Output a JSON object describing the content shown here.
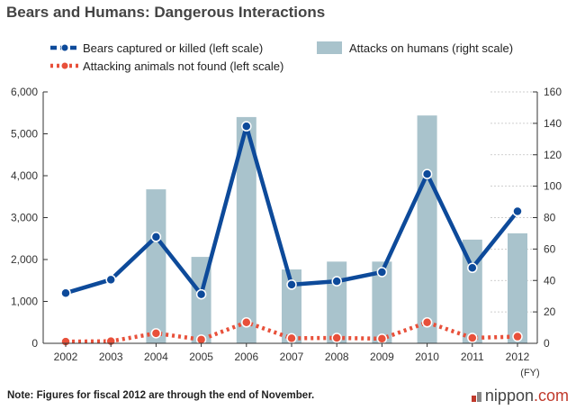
{
  "title": "Bears and Humans: Dangerous Interactions",
  "note": "Note: Figures for fiscal 2012 are through the end of November.",
  "brand": {
    "name": "nippon",
    "suffix": ".com"
  },
  "colors": {
    "bears": "#0d4a9a",
    "not_found": "#e8503a",
    "attacks": "#a9c3cc",
    "grid": "#bfbfbf"
  },
  "chart_data": {
    "type": "bar+line",
    "title": "Bears and Humans: Dangerous Interactions",
    "xlabel": "(FY)",
    "categories": [
      "2002",
      "2003",
      "2004",
      "2005",
      "2006",
      "2007",
      "2008",
      "2009",
      "2010",
      "2011",
      "2012"
    ],
    "left_axis": {
      "range": [
        0,
        6000
      ],
      "ticks": [
        "0",
        "1,000",
        "2,000",
        "3,000",
        "4,000",
        "5,000",
        "6,000"
      ],
      "tick_values": [
        0,
        1000,
        2000,
        3000,
        4000,
        5000,
        6000
      ]
    },
    "right_axis": {
      "range": [
        0,
        160
      ],
      "ticks": [
        "0",
        "20",
        "40",
        "60",
        "80",
        "100",
        "120",
        "140",
        "160"
      ],
      "tick_values": [
        0,
        20,
        40,
        60,
        80,
        100,
        120,
        140,
        160
      ]
    },
    "series": [
      {
        "name": "Bears captured or killed (left scale)",
        "kind": "line",
        "axis": "left",
        "values": [
          1200,
          1520,
          2540,
          1170,
          5180,
          1400,
          1480,
          1700,
          4040,
          1800,
          3150
        ]
      },
      {
        "name": "Attacking animals not found (left scale)",
        "kind": "line",
        "axis": "left",
        "values": [
          40,
          50,
          240,
          90,
          500,
          120,
          130,
          110,
          500,
          130,
          160
        ]
      },
      {
        "name": "Attacks on humans (right scale)",
        "kind": "bar",
        "axis": "right",
        "values": [
          null,
          null,
          98,
          55,
          144,
          47,
          52,
          52,
          145,
          66,
          70
        ]
      }
    ],
    "legend_position": "top"
  }
}
